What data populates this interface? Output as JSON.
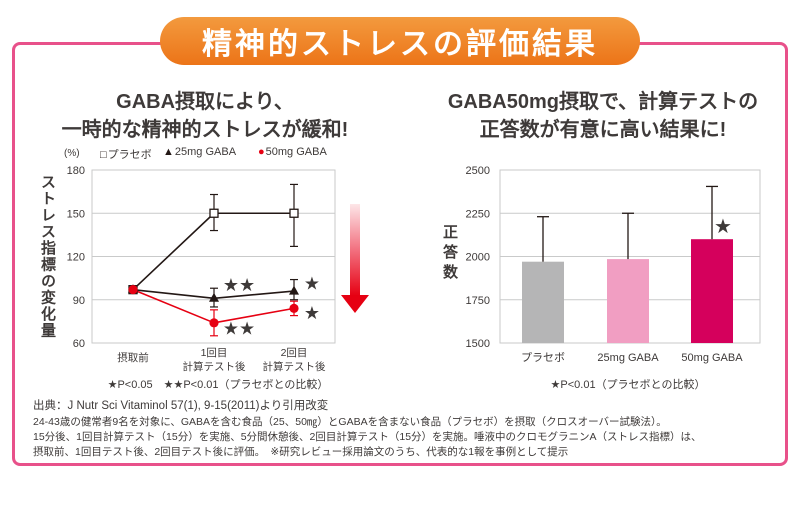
{
  "theme": {
    "header_bg": "#ee7b20",
    "frame_border": "#e8518a",
    "text": "#3e3a39",
    "grid": "#c9caca"
  },
  "icons": {
    "stress_trend_arrow": "down-arrow-icon"
  },
  "header": {
    "title": "精神的ストレスの評価結果"
  },
  "chart_data": [
    {
      "type": "line",
      "title": [
        "GABA摂取により、",
        "一時的な精神的ストレスが緩和!"
      ],
      "ylabel": "ストレス指標の変化量",
      "y_unit": "(%)",
      "categories": [
        "摂取前",
        "1回目\n計算テスト後",
        "2回目\n計算テスト後"
      ],
      "ylim": [
        60,
        180
      ],
      "yticks": [
        180,
        150,
        120,
        90,
        60
      ],
      "grid": true,
      "legend_position": "top",
      "series": [
        {
          "name": "プラセボ",
          "legend_symbol": "□",
          "marker": "square-open",
          "color": "#231815",
          "values": [
            97,
            150,
            150
          ],
          "error_low": [
            null,
            138,
            127
          ],
          "error_high": [
            null,
            163,
            170
          ],
          "significance": [
            "",
            "",
            ""
          ]
        },
        {
          "name": "25mg GABA",
          "legend_symbol": "▲",
          "marker": "triangle-filled",
          "color": "#231815",
          "values": [
            97,
            91,
            96
          ],
          "error_low": [
            null,
            85,
            90
          ],
          "error_high": [
            null,
            98,
            104
          ],
          "significance": [
            "",
            "★★",
            "★"
          ]
        },
        {
          "name": "50mg GABA",
          "legend_symbol": "●",
          "marker": "circle-filled",
          "color": "#e60012",
          "values": [
            97,
            74,
            84
          ],
          "error_low": [
            null,
            65,
            79
          ],
          "error_high": [
            null,
            83,
            89
          ],
          "significance": [
            "",
            "★★",
            "★"
          ]
        }
      ],
      "footnote": "★P<0.05　★★P<0.01（プラセボとの比較）"
    },
    {
      "type": "bar",
      "title": [
        "GABA50mg摂取で、計算テストの",
        "正答数が有意に高い結果に!"
      ],
      "ylabel": "正答数",
      "categories": [
        "プラセボ",
        "25mg GABA",
        "50mg GABA"
      ],
      "values": [
        1970,
        1985,
        2100
      ],
      "error_high": [
        2230,
        2250,
        2405
      ],
      "colors": [
        "#b5b5b6",
        "#f19ec2",
        "#d5005c"
      ],
      "significance": [
        "",
        "",
        "★"
      ],
      "ylim": [
        1500,
        2500
      ],
      "yticks": [
        2500,
        2250,
        2000,
        1750,
        1500
      ],
      "grid": true,
      "footnote": "★P<0.01（プラセボとの比較）"
    }
  ],
  "source": {
    "citation": "出典：J Nutr Sci Vitaminol 57(1), 9-15(2011)より引用改変",
    "lines": [
      "24-43歳の健常者9名を対象に、GABAを含む食品（25、50㎎）とGABAを含まない食品（プラセボ）を摂取（クロスオーバー試験法）。",
      "15分後、1回目計算テスト（15分）を実施、5分間休憩後、2回目計算テスト（15分）を実施。唾液中のクロモグラニンA（ストレス指標）は、",
      "摂取前、1回目テスト後、2回目テスト後に評価。　※研究レビュー採用論文のうち、代表的な1報を事例として提示"
    ]
  }
}
